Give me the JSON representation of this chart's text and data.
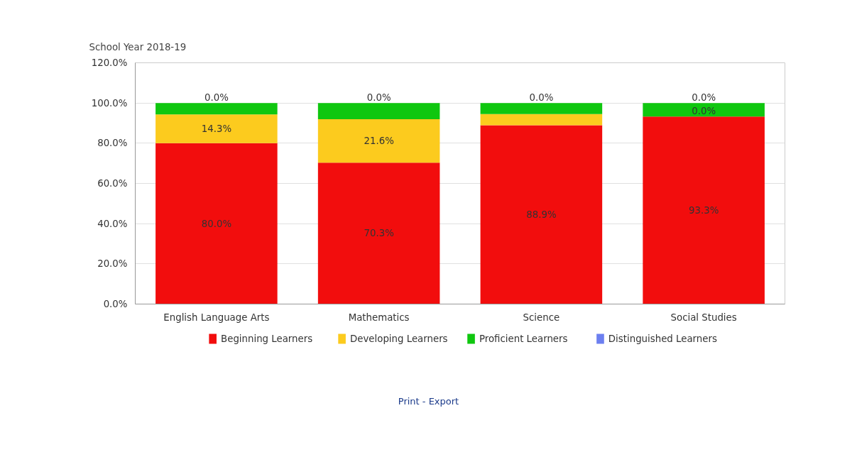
{
  "chart_data": {
    "type": "bar",
    "title": "School Year 2018-19",
    "stacked": true,
    "categories": [
      "English Language Arts",
      "Mathematics",
      "Science",
      "Social Studies"
    ],
    "series": [
      {
        "name": "Beginning Learners",
        "color": "#f20d0d",
        "values": [
          80.0,
          70.3,
          88.9,
          93.3
        ],
        "value_labels": [
          "80.0%",
          "70.3%",
          "88.9%",
          "93.3%"
        ]
      },
      {
        "name": "Developing Learners",
        "color": "#fccb1e",
        "values": [
          14.3,
          21.6,
          5.6,
          0.0
        ],
        "value_labels": [
          "14.3%",
          "21.6%",
          null,
          "0.0%"
        ]
      },
      {
        "name": "Proficient Learners",
        "color": "#0fc70f",
        "values": [
          5.7,
          8.1,
          5.5,
          6.7
        ]
      },
      {
        "name": "Distinguished Learners",
        "color": "#6c7ff0",
        "values": [
          0.0,
          0.0,
          0.0,
          0.0
        ],
        "value_labels": [
          "0.0%",
          "0.0%",
          "0.0%",
          "0.0%"
        ]
      }
    ],
    "ylim": [
      0,
      120
    ],
    "yticks": [
      {
        "value": 0,
        "label": "0.0%"
      },
      {
        "value": 20,
        "label": "20.0%"
      },
      {
        "value": 40,
        "label": "40.0%"
      },
      {
        "value": 60,
        "label": "60.0%"
      },
      {
        "value": 80,
        "label": "80.0%"
      },
      {
        "value": 100,
        "label": "100.0%"
      },
      {
        "value": 120,
        "label": "120.0%"
      }
    ],
    "grid": "y",
    "legend": "bottom",
    "annotations": [
      "Print - Export"
    ]
  }
}
